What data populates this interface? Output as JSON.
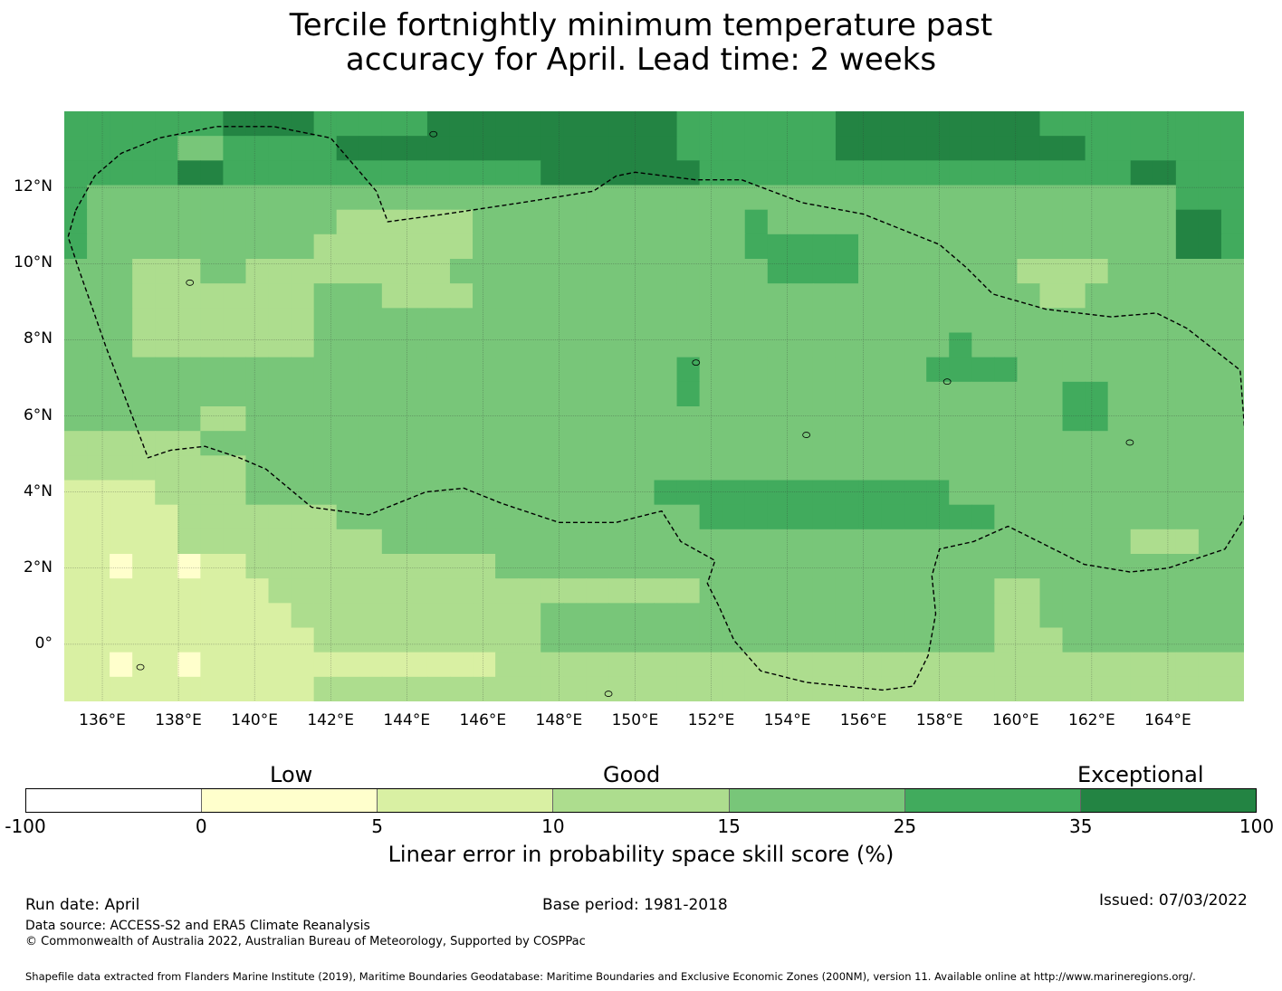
{
  "title_line1": "Tercile fortnightly minimum temperature past",
  "title_line2": "accuracy for April. Lead time: 2 weeks",
  "map": {
    "lon_ticks": [
      "136°E",
      "138°E",
      "140°E",
      "142°E",
      "144°E",
      "146°E",
      "148°E",
      "150°E",
      "152°E",
      "154°E",
      "156°E",
      "158°E",
      "160°E",
      "162°E",
      "164°E"
    ],
    "lat_ticks": [
      "12°N",
      "10°N",
      "8°N",
      "6°N",
      "4°N",
      "2°N",
      "0°"
    ],
    "lon_values": [
      136,
      138,
      140,
      142,
      144,
      146,
      148,
      150,
      152,
      154,
      156,
      158,
      160,
      162,
      164
    ],
    "lat_values": [
      12,
      10,
      8,
      6,
      4,
      2,
      0
    ],
    "lon_range": [
      135,
      166
    ],
    "lat_range": [
      -1.5,
      14
    ],
    "grid": true,
    "grid_resolution_deg": 0.833,
    "boundary_description": "dashed outline of Federated States of Micronesia EEZ"
  },
  "legend": {
    "category_low": "Low",
    "category_good": "Good",
    "category_exceptional": "Exceptional",
    "ticks": [
      "-100",
      "0",
      "5",
      "10",
      "15",
      "25",
      "35",
      "100"
    ],
    "colors": [
      "#ffffff",
      "#ffffcc",
      "#d9f0a3",
      "#addd8e",
      "#78c679",
      "#41ab5d",
      "#238443"
    ],
    "label": "Linear error in probability space skill score (%)"
  },
  "footer": {
    "run_date": "Run date: April",
    "base_period": "Base period: 1981-2018",
    "issued": "Issued: 07/03/2022",
    "data_source": "Data source: ACCESS-S2 and ERA5 Climate Reanalysis",
    "copyright": "© Commonwealth of Australia 2022, Australian Bureau of Meteorology, Supported by COSPPac",
    "shapefile": "Shapefile data extracted from Flanders Marine Institute (2019), Maritime Boundaries Geodatabase: Maritime Boundaries and Exclusive Economic Zones (200NM), version 11. Available online at http://www.marineregions.org/."
  }
}
